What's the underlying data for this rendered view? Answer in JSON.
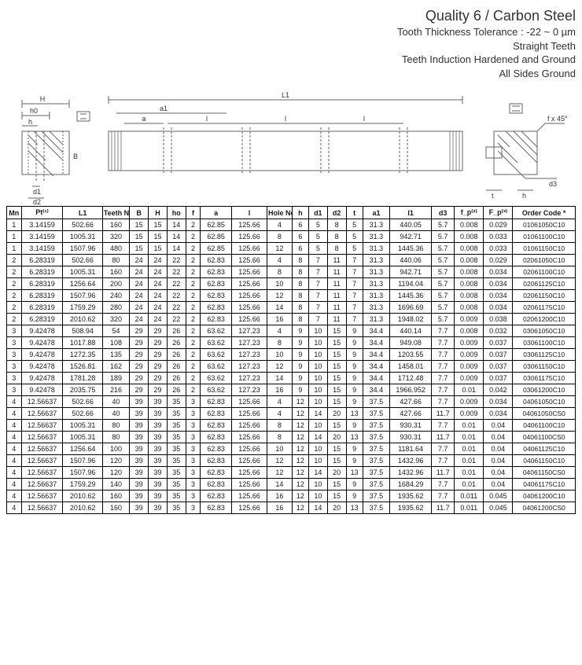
{
  "header": {
    "main": "Quality 6  / Carbon Steel",
    "l1": "Tooth Thickness Tolerance : -22 ~ 0 µm",
    "l2": "Straight Teeth",
    "l3": "Teeth Induction Hardened and Ground",
    "l4": "All Sides Ground"
  },
  "diagram_labels": {
    "H": "H",
    "h0": "h0",
    "h": "h",
    "d1": "d1",
    "d2": "d2",
    "B": "B",
    "L1": "L1",
    "a1": "a1",
    "a": "a",
    "l": "l",
    "fx45": "f x 45°",
    "d3": "d3",
    "t": "t"
  },
  "columns": [
    "Mn",
    "Pt⁽¹⁾",
    "L1",
    "Teeth No.",
    "B",
    "H",
    "ho",
    "f",
    "a",
    "l",
    "Hole No.",
    "h",
    "d1",
    "d2",
    "t",
    "a1",
    "l1",
    "d3",
    "f_p⁽²⁾",
    "F_p⁽³⁾",
    "Order Code *"
  ],
  "rows": [
    [
      "1",
      "3.14159",
      "502.66",
      "160",
      "15",
      "15",
      "14",
      "2",
      "62.85",
      "125.66",
      "4",
      "6",
      "5",
      "8",
      "5",
      "31.3",
      "440.05",
      "5.7",
      "0.008",
      "0.029",
      "01061050C10"
    ],
    [
      "1",
      "3.14159",
      "1005.31",
      "320",
      "15",
      "15",
      "14",
      "2",
      "62.85",
      "125.66",
      "8",
      "6",
      "5",
      "8",
      "5",
      "31.3",
      "942.71",
      "5.7",
      "0.008",
      "0.033",
      "01061100C10"
    ],
    [
      "1",
      "3.14159",
      "1507.96",
      "480",
      "15",
      "15",
      "14",
      "2",
      "62.85",
      "125.66",
      "12",
      "6",
      "5",
      "8",
      "5",
      "31.3",
      "1445.36",
      "5.7",
      "0.008",
      "0.033",
      "01061150C10"
    ],
    [
      "2",
      "6.28319",
      "502.66",
      "80",
      "24",
      "24",
      "22",
      "2",
      "62.83",
      "125.66",
      "4",
      "8",
      "7",
      "11",
      "7",
      "31.3",
      "440.06",
      "5.7",
      "0.008",
      "0.029",
      "02061050C10"
    ],
    [
      "2",
      "6.28319",
      "1005.31",
      "160",
      "24",
      "24",
      "22",
      "2",
      "62.83",
      "125.66",
      "8",
      "8",
      "7",
      "11",
      "7",
      "31.3",
      "942.71",
      "5.7",
      "0.008",
      "0.034",
      "02061100C10"
    ],
    [
      "2",
      "6.28319",
      "1256.64",
      "200",
      "24",
      "24",
      "22",
      "2",
      "62.83",
      "125.66",
      "10",
      "8",
      "7",
      "11",
      "7",
      "31.3",
      "1194.04",
      "5.7",
      "0.008",
      "0.034",
      "02061125C10"
    ],
    [
      "2",
      "6.28319",
      "1507.96",
      "240",
      "24",
      "24",
      "22",
      "2",
      "62.83",
      "125.66",
      "12",
      "8",
      "7",
      "11",
      "7",
      "31.3",
      "1445.36",
      "5.7",
      "0.008",
      "0.034",
      "02061150C10"
    ],
    [
      "2",
      "6.28319",
      "1759.29",
      "280",
      "24",
      "24",
      "22",
      "2",
      "62.83",
      "125.66",
      "14",
      "8",
      "7",
      "11",
      "7",
      "31.3",
      "1696.69",
      "5.7",
      "0.008",
      "0.034",
      "02061175C10"
    ],
    [
      "2",
      "6.28319",
      "2010.62",
      "320",
      "24",
      "24",
      "22",
      "2",
      "62.83",
      "125.66",
      "16",
      "8",
      "7",
      "11",
      "7",
      "31.3",
      "1948.02",
      "5.7",
      "0.009",
      "0.038",
      "02061200C10"
    ],
    [
      "3",
      "9.42478",
      "508.94",
      "54",
      "29",
      "29",
      "26",
      "2",
      "63.62",
      "127.23",
      "4",
      "9",
      "10",
      "15",
      "9",
      "34.4",
      "440.14",
      "7.7",
      "0.008",
      "0.032",
      "03061050C10"
    ],
    [
      "3",
      "9.42478",
      "1017.88",
      "108",
      "29",
      "29",
      "26",
      "2",
      "63.62",
      "127.23",
      "8",
      "9",
      "10",
      "15",
      "9",
      "34.4",
      "949.08",
      "7.7",
      "0.009",
      "0.037",
      "03061100C10"
    ],
    [
      "3",
      "9.42478",
      "1272.35",
      "135",
      "29",
      "29",
      "26",
      "2",
      "63.62",
      "127.23",
      "10",
      "9",
      "10",
      "15",
      "9",
      "34.4",
      "1203.55",
      "7.7",
      "0.009",
      "0.037",
      "03061125C10"
    ],
    [
      "3",
      "9.42478",
      "1526.81",
      "162",
      "29",
      "29",
      "26",
      "2",
      "63.62",
      "127.23",
      "12",
      "9",
      "10",
      "15",
      "9",
      "34.4",
      "1458.01",
      "7.7",
      "0.009",
      "0.037",
      "03061150C10"
    ],
    [
      "3",
      "9.42478",
      "1781.28",
      "189",
      "29",
      "29",
      "26",
      "2",
      "63.62",
      "127.23",
      "14",
      "9",
      "10",
      "15",
      "9",
      "34.4",
      "1712.48",
      "7.7",
      "0.009",
      "0.037",
      "03061175C10"
    ],
    [
      "3",
      "9.42478",
      "2035.75",
      "216",
      "29",
      "29",
      "26",
      "2",
      "63.62",
      "127.23",
      "16",
      "9",
      "10",
      "15",
      "9",
      "34.4",
      "1966.952",
      "7.7",
      "0.01",
      "0.042",
      "03061200C10"
    ],
    [
      "4",
      "12.56637",
      "502.66",
      "40",
      "39",
      "39",
      "35",
      "3",
      "62.83",
      "125.66",
      "4",
      "12",
      "10",
      "15",
      "9",
      "37.5",
      "427.66",
      "7.7",
      "0.009",
      "0.034",
      "04061050C10"
    ],
    [
      "4",
      "12.56637",
      "502.66",
      "40",
      "39",
      "39",
      "35",
      "3",
      "62.83",
      "125.66",
      "4",
      "12",
      "14",
      "20",
      "13",
      "37.5",
      "427.66",
      "11.7",
      "0.009",
      "0.034",
      "04061050CS0"
    ],
    [
      "4",
      "12.56637",
      "1005.31",
      "80",
      "39",
      "39",
      "35",
      "3",
      "62.83",
      "125.66",
      "8",
      "12",
      "10",
      "15",
      "9",
      "37.5",
      "930.31",
      "7.7",
      "0.01",
      "0.04",
      "04061100C10"
    ],
    [
      "4",
      "12.56637",
      "1005.31",
      "80",
      "39",
      "39",
      "35",
      "3",
      "62.83",
      "125.66",
      "8",
      "12",
      "14",
      "20",
      "13",
      "37.5",
      "930.31",
      "11.7",
      "0.01",
      "0.04",
      "04061100CS0"
    ],
    [
      "4",
      "12.56637",
      "1256.64",
      "100",
      "39",
      "39",
      "35",
      "3",
      "62.83",
      "125.66",
      "10",
      "12",
      "10",
      "15",
      "9",
      "37.5",
      "1181.64",
      "7.7",
      "0.01",
      "0.04",
      "04061125C10"
    ],
    [
      "4",
      "12.56637",
      "1507.96",
      "120",
      "39",
      "39",
      "35",
      "3",
      "62.83",
      "125.66",
      "12",
      "12",
      "10",
      "15",
      "9",
      "37.5",
      "1432.96",
      "7.7",
      "0.01",
      "0.04",
      "04061150C10"
    ],
    [
      "4",
      "12.56637",
      "1507.96",
      "120",
      "39",
      "39",
      "35",
      "3",
      "62.83",
      "125.66",
      "12",
      "12",
      "14",
      "20",
      "13",
      "37.5",
      "1432.96",
      "11.7",
      "0.01",
      "0.04",
      "04061150CS0"
    ],
    [
      "4",
      "12.56637",
      "1759.29",
      "140",
      "39",
      "39",
      "35",
      "3",
      "62.83",
      "125.66",
      "14",
      "12",
      "10",
      "15",
      "9",
      "37.5",
      "1684.29",
      "7.7",
      "0.01",
      "0.04",
      "04061175C10"
    ],
    [
      "4",
      "12.56637",
      "2010.62",
      "160",
      "39",
      "39",
      "35",
      "3",
      "62.83",
      "125.66",
      "16",
      "12",
      "10",
      "15",
      "9",
      "37.5",
      "1935.62",
      "7.7",
      "0.011",
      "0.045",
      "04061200C10"
    ],
    [
      "4",
      "12.56637",
      "2010.62",
      "160",
      "39",
      "39",
      "35",
      "3",
      "62.83",
      "125.66",
      "16",
      "12",
      "14",
      "20",
      "13",
      "37.5",
      "1935.62",
      "11.7",
      "0.011",
      "0.045",
      "04061200CS0"
    ]
  ],
  "style": {
    "border_color": "#000000",
    "header_font_size": 9,
    "cell_font_size": 9,
    "diagram_stroke": "#666666"
  }
}
